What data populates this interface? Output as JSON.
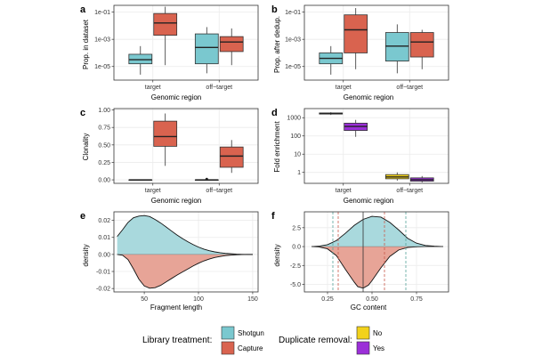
{
  "colors": {
    "shotgun": "#7ac8cf",
    "capture": "#d9634f",
    "no": "#f2d21b",
    "yes": "#9b2fd8",
    "grid": "#ebebeb",
    "panel_border": "#333333",
    "density_shotgun_fill": "#a9d9dd",
    "density_capture_fill": "#e7a497",
    "vline_shotgun": "#56a39b",
    "vline_capture": "#c95a4c"
  },
  "panels": {
    "a": {
      "letter": "a",
      "xlabel": "Genomic region",
      "ylabel": "Prop. in dataset",
      "ticks": [
        "1e-05",
        "1e-03",
        "1e-01"
      ]
    },
    "b": {
      "letter": "b",
      "xlabel": "Genomic region",
      "ylabel": "Prop. after dedup.",
      "ticks": [
        "1e-05",
        "1e-03",
        "1e-01"
      ]
    },
    "c": {
      "letter": "c",
      "xlabel": "Genomic region",
      "ylabel": "Clonality",
      "ticks": [
        "0.00",
        "0.25",
        "0.50",
        "0.75",
        "1.00"
      ]
    },
    "d": {
      "letter": "d",
      "xlabel": "Genomic region",
      "ylabel": "Fold enrichment",
      "ticks": [
        "1",
        "10",
        "100",
        "1000"
      ]
    },
    "e": {
      "letter": "e",
      "xlabel": "Fragment length",
      "ylabel": "density",
      "xticks": [
        "50",
        "100",
        "150"
      ],
      "yticks": [
        "-0.02",
        "-0.01",
        "0.00",
        "0.01",
        "0.02"
      ]
    },
    "f": {
      "letter": "f",
      "xlabel": "GC content",
      "ylabel": "density",
      "xticks": [
        "0.25",
        "0.50",
        "0.75"
      ],
      "yticks": [
        "-5.0",
        "-2.5",
        "0.0",
        "2.5"
      ]
    }
  },
  "categories": [
    "target",
    "off−target"
  ],
  "legend": {
    "library_title": "Library treatment:",
    "library_items": [
      {
        "label": "Shotgun",
        "color": "#7ac8cf"
      },
      {
        "label": "Capture",
        "color": "#d9634f"
      }
    ],
    "dup_title": "Duplicate removal:",
    "dup_items": [
      {
        "label": "No",
        "color": "#f2d21b"
      },
      {
        "label": "Yes",
        "color": "#9b2fd8"
      }
    ]
  },
  "chart_data": [
    {
      "panel": "a",
      "type": "box",
      "yscale": "log10",
      "ylim": [
        -6,
        -0.5
      ],
      "categories": [
        "target",
        "off−target"
      ],
      "series": [
        {
          "group": "Shotgun",
          "color": "#7ac8cf",
          "boxes": [
            {
              "category": "target",
              "min": -5.6,
              "q1": -4.8,
              "median": -4.5,
              "q3": -4.1,
              "max": -3.5
            },
            {
              "category": "off−target",
              "min": -5.5,
              "q1": -4.8,
              "median": -3.6,
              "q3": -2.6,
              "max": -2.1
            }
          ]
        },
        {
          "group": "Capture",
          "color": "#d9634f",
          "boxes": [
            {
              "category": "target",
              "min": -4.9,
              "q1": -2.7,
              "median": -1.8,
              "q3": -1.1,
              "max": -0.6
            },
            {
              "category": "off−target",
              "min": -4.9,
              "q1": -3.9,
              "median": -3.2,
              "q3": -2.8,
              "max": -2.2
            }
          ]
        }
      ]
    },
    {
      "panel": "b",
      "type": "box",
      "yscale": "log10",
      "ylim": [
        -6,
        -0.5
      ],
      "categories": [
        "target",
        "off−target"
      ],
      "series": [
        {
          "group": "Shotgun",
          "color": "#7ac8cf",
          "boxes": [
            {
              "category": "target",
              "min": -5.6,
              "q1": -4.8,
              "median": -4.4,
              "q3": -4.0,
              "max": -3.5
            },
            {
              "category": "off−target",
              "min": -5.5,
              "q1": -4.6,
              "median": -3.5,
              "q3": -2.5,
              "max": -1.9
            }
          ]
        },
        {
          "group": "Capture",
          "color": "#d9634f",
          "boxes": [
            {
              "category": "target",
              "min": -5.2,
              "q1": -4.0,
              "median": -2.3,
              "q3": -1.2,
              "max": -0.7
            },
            {
              "category": "off−target",
              "min": -5.2,
              "q1": -4.3,
              "median": -3.2,
              "q3": -2.5,
              "max": -2.3
            }
          ]
        }
      ]
    },
    {
      "panel": "c",
      "type": "box",
      "ylim": [
        -0.05,
        1.02
      ],
      "categories": [
        "target",
        "off−target"
      ],
      "series": [
        {
          "group": "Shotgun",
          "color": "#7ac8cf",
          "boxes": [
            {
              "category": "target",
              "min": 0.0,
              "q1": 0.0,
              "median": 0.0,
              "q3": 0.0,
              "max": 0.0
            },
            {
              "category": "off−target",
              "min": 0.0,
              "q1": 0.0,
              "median": 0.0,
              "q3": 0.0,
              "max": 0.01,
              "outlier": 0.01
            }
          ]
        },
        {
          "group": "Capture",
          "color": "#d9634f",
          "boxes": [
            {
              "category": "target",
              "min": 0.2,
              "q1": 0.48,
              "median": 0.62,
              "q3": 0.84,
              "max": 0.95
            },
            {
              "category": "off−target",
              "min": 0.1,
              "q1": 0.18,
              "median": 0.34,
              "q3": 0.47,
              "max": 0.57
            }
          ]
        }
      ]
    },
    {
      "panel": "d",
      "type": "box",
      "yscale": "log10",
      "ylim": [
        -0.6,
        3.5
      ],
      "categories": [
        "target",
        "off−target"
      ],
      "series": [
        {
          "group": "No",
          "color": "#f2d21b",
          "boxes": [
            {
              "category": "target",
              "min": 3.15,
              "q1": 3.2,
              "median": 3.23,
              "q3": 3.26,
              "max": 3.3
            },
            {
              "category": "off−target",
              "min": -0.45,
              "q1": -0.35,
              "median": -0.25,
              "q3": -0.12,
              "max": 0.0
            }
          ]
        },
        {
          "group": "Yes",
          "color": "#9b2fd8",
          "boxes": [
            {
              "category": "target",
              "min": 1.95,
              "q1": 2.3,
              "median": 2.52,
              "q3": 2.7,
              "max": 2.88
            },
            {
              "category": "off−target",
              "min": -0.55,
              "q1": -0.48,
              "median": -0.4,
              "q3": -0.3,
              "max": -0.2
            }
          ]
        }
      ]
    },
    {
      "panel": "e",
      "type": "area",
      "xlim": [
        22,
        155
      ],
      "ylim": [
        -0.022,
        0.025
      ],
      "series": [
        {
          "name": "Shotgun",
          "color": "#a9d9dd",
          "x": [
            25,
            30,
            35,
            40,
            45,
            50,
            55,
            60,
            65,
            70,
            75,
            80,
            85,
            90,
            95,
            100,
            105,
            110,
            115,
            120,
            125,
            130,
            135,
            140,
            145,
            150
          ],
          "y": [
            0.0105,
            0.0145,
            0.0188,
            0.0215,
            0.0225,
            0.0228,
            0.0222,
            0.0205,
            0.0185,
            0.0162,
            0.0138,
            0.0115,
            0.0094,
            0.0075,
            0.0058,
            0.0043,
            0.0031,
            0.0022,
            0.0015,
            0.001,
            0.0006,
            0.0004,
            0.0002,
            0.0001,
            0.0,
            0.0
          ]
        },
        {
          "name": "Capture",
          "color": "#e7a497",
          "x": [
            25,
            30,
            35,
            40,
            45,
            50,
            55,
            60,
            65,
            70,
            75,
            80,
            85,
            90,
            95,
            100,
            105,
            110,
            115,
            120,
            125,
            130,
            135,
            140,
            145,
            150
          ],
          "y": [
            0.0,
            -0.0005,
            -0.003,
            -0.0085,
            -0.0145,
            -0.0185,
            -0.0198,
            -0.0195,
            -0.0182,
            -0.0162,
            -0.0142,
            -0.0122,
            -0.0104,
            -0.0086,
            -0.0068,
            -0.0052,
            -0.0038,
            -0.0027,
            -0.0018,
            -0.0012,
            -0.0007,
            -0.0004,
            -0.0002,
            -0.0001,
            0.0,
            0.0
          ]
        }
      ]
    },
    {
      "panel": "f",
      "type": "area",
      "xlim": [
        0.12,
        0.93
      ],
      "ylim": [
        -6.0,
        4.6
      ],
      "vlines": [
        {
          "x": 0.45,
          "color": "#333333",
          "style": "solid"
        },
        {
          "x": 0.31,
          "color": "#c95a4c",
          "style": "dashed"
        },
        {
          "x": 0.57,
          "color": "#c95a4c",
          "style": "dashed"
        },
        {
          "x": 0.28,
          "color": "#56a39b",
          "style": "dashed"
        },
        {
          "x": 0.69,
          "color": "#56a39b",
          "style": "dashed"
        }
      ],
      "series": [
        {
          "name": "Shotgun",
          "color": "#a9d9dd",
          "x": [
            0.16,
            0.2,
            0.25,
            0.3,
            0.35,
            0.4,
            0.45,
            0.5,
            0.55,
            0.6,
            0.65,
            0.7,
            0.75,
            0.8,
            0.85,
            0.9
          ],
          "y": [
            0.0,
            0.05,
            0.25,
            0.8,
            1.75,
            2.8,
            3.6,
            4.0,
            3.9,
            3.2,
            2.2,
            1.1,
            0.45,
            0.15,
            0.05,
            0.0
          ]
        },
        {
          "name": "Capture",
          "color": "#e7a497",
          "x": [
            0.16,
            0.2,
            0.25,
            0.3,
            0.35,
            0.4,
            0.42,
            0.45,
            0.48,
            0.5,
            0.55,
            0.6,
            0.65,
            0.7,
            0.75,
            0.8,
            0.9
          ],
          "y": [
            0.0,
            -0.05,
            -0.3,
            -1.2,
            -3.0,
            -4.7,
            -5.3,
            -5.5,
            -5.1,
            -4.5,
            -2.8,
            -1.3,
            -0.45,
            -0.12,
            -0.03,
            0.0,
            0.0
          ]
        }
      ]
    }
  ]
}
